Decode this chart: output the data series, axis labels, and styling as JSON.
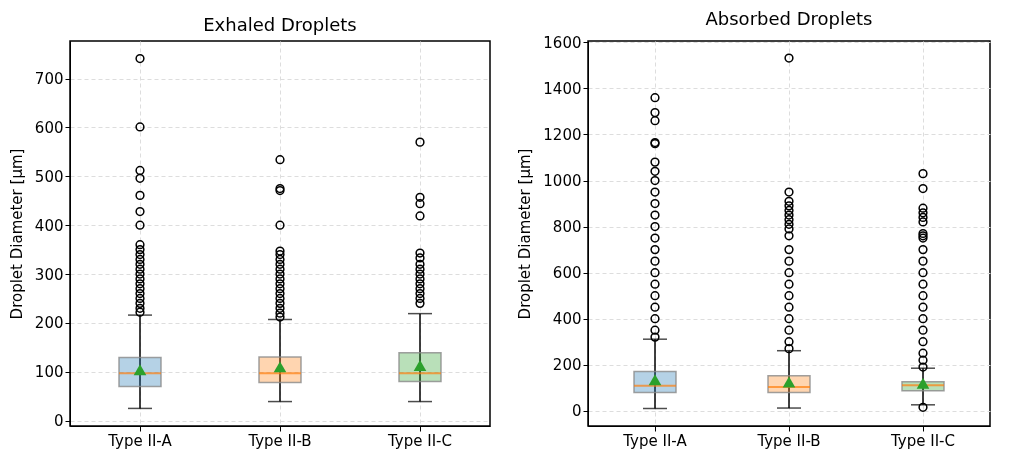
{
  "chart_data": [
    {
      "type": "box",
      "title": "Exhaled Droplets",
      "ylabel": "Droplet Diameter [µm]",
      "categories": [
        "Type II-A",
        "Type II-B",
        "Type II-C"
      ],
      "colors": [
        "#1f77b4",
        "#ff7f0e",
        "#2ca02c"
      ],
      "ylim": [
        -11,
        777
      ],
      "yticks": [
        0,
        100,
        200,
        300,
        400,
        500,
        600,
        700
      ],
      "grid": true,
      "boxes": [
        {
          "low": 25,
          "q1": 70,
          "median": 97,
          "q3": 129,
          "high": 216,
          "mean": 104,
          "outliers": [
            222,
            230,
            240,
            250,
            260,
            270,
            280,
            290,
            300,
            310,
            320,
            330,
            340,
            350,
            360,
            400,
            428,
            461,
            496,
            512,
            601,
            741
          ]
        },
        {
          "low": 39,
          "q1": 78,
          "median": 97,
          "q3": 130,
          "high": 207,
          "mean": 110,
          "outliers": [
            212,
            220,
            230,
            240,
            250,
            260,
            270,
            280,
            290,
            300,
            310,
            320,
            330,
            340,
            347,
            400,
            471,
            475,
            534
          ]
        },
        {
          "low": 39,
          "q1": 80,
          "median": 97,
          "q3": 139,
          "high": 219,
          "mean": 113,
          "outliers": [
            240,
            250,
            260,
            270,
            280,
            290,
            300,
            310,
            320,
            333,
            343,
            419,
            444,
            457,
            570
          ]
        }
      ]
    },
    {
      "type": "box",
      "title": "Absorbed Droplets",
      "ylabel": "Droplet Diameter [µm]",
      "categories": [
        "Type II-A",
        "Type II-B",
        "Type II-C"
      ],
      "colors": [
        "#1f77b4",
        "#ff7f0e",
        "#2ca02c"
      ],
      "ylim": [
        -66,
        1606
      ],
      "yticks": [
        0,
        200,
        400,
        600,
        800,
        1000,
        1200,
        1400,
        1600
      ],
      "grid": true,
      "boxes": [
        {
          "low": 10,
          "q1": 80,
          "median": 109,
          "q3": 171,
          "high": 311,
          "mean": 135,
          "outliers": [
            320,
            350,
            400,
            450,
            500,
            550,
            600,
            650,
            700,
            750,
            800,
            850,
            900,
            950,
            1000,
            1040,
            1080,
            1160,
            1165,
            1260,
            1295,
            1360
          ]
        },
        {
          "low": 12,
          "q1": 80,
          "median": 103,
          "q3": 152,
          "high": 261,
          "mean": 125,
          "outliers": [
            270,
            300,
            350,
            400,
            450,
            500,
            550,
            600,
            650,
            700,
            760,
            790,
            810,
            830,
            850,
            870,
            890,
            910,
            950,
            1532
          ]
        },
        {
          "low": 26,
          "q1": 87,
          "median": 111,
          "q3": 126,
          "high": 185,
          "mean": 120,
          "outliers": [
            15,
            190,
            220,
            250,
            300,
            350,
            400,
            450,
            500,
            550,
            600,
            650,
            700,
            750,
            760,
            770,
            820,
            840,
            860,
            880,
            965,
            1030
          ]
        }
      ]
    }
  ]
}
